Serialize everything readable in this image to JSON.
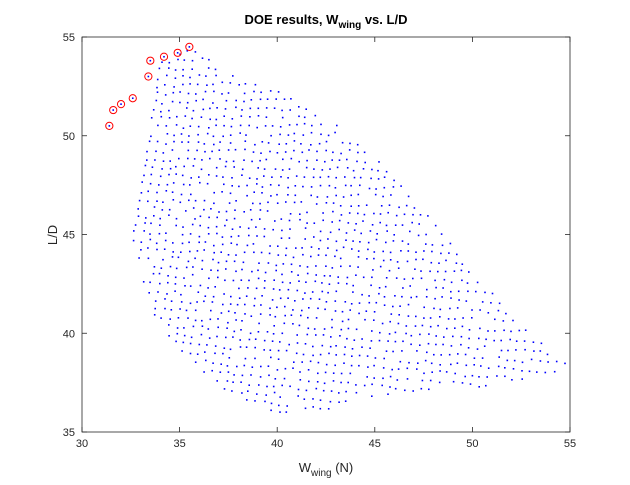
{
  "chart_data": {
    "type": "scatter",
    "title": {
      "pre": "DOE results, W",
      "sub": "wing",
      "post": " vs. L/D"
    },
    "xlabel": {
      "pre": "W",
      "sub": "wing",
      "post": " (N)"
    },
    "ylabel": "L/D",
    "xlim": [
      30,
      55
    ],
    "ylim": [
      35,
      55
    ],
    "xticks": [
      "30",
      "35",
      "40",
      "45",
      "50",
      "55"
    ],
    "yticks": [
      "35",
      "40",
      "45",
      "50",
      "55"
    ],
    "grid": false,
    "legend": "none",
    "series": [
      {
        "marker": "dot",
        "color": "#0000ff",
        "region": {
          "vertices": [
            [
              31.4,
              50.5
            ],
            [
              31.6,
              51.3
            ],
            [
              32.0,
              51.6
            ],
            [
              32.6,
              51.9
            ],
            [
              33.4,
              53.0
            ],
            [
              33.5,
              53.8
            ],
            [
              34.2,
              54.0
            ],
            [
              34.9,
              54.2
            ],
            [
              35.5,
              54.5
            ],
            [
              38.0,
              53.0
            ],
            [
              42.0,
              51.5
            ],
            [
              46.0,
              48.0
            ],
            [
              49.0,
              44.5
            ],
            [
              52.0,
              41.0
            ],
            [
              55.0,
              38.3
            ],
            [
              52.0,
              37.3
            ],
            [
              48.5,
              37.2
            ],
            [
              45.0,
              36.8
            ],
            [
              42.0,
              36.0
            ],
            [
              40.0,
              35.8
            ],
            [
              37.0,
              37.2
            ],
            [
              34.0,
              40.0
            ],
            [
              33.0,
              43.0
            ],
            [
              32.3,
              46.0
            ],
            [
              31.7,
              48.5
            ]
          ]
        },
        "approx_points": 2400
      },
      {
        "name": "",
        "marker": "circle",
        "color": "#ff0000",
        "x": [
          31.4,
          31.6,
          32.0,
          32.6,
          33.4,
          33.5,
          34.2,
          34.9,
          35.5
        ],
        "y": [
          50.5,
          51.3,
          51.6,
          51.9,
          53.0,
          53.8,
          54.0,
          54.2,
          54.5
        ]
      }
    ]
  }
}
